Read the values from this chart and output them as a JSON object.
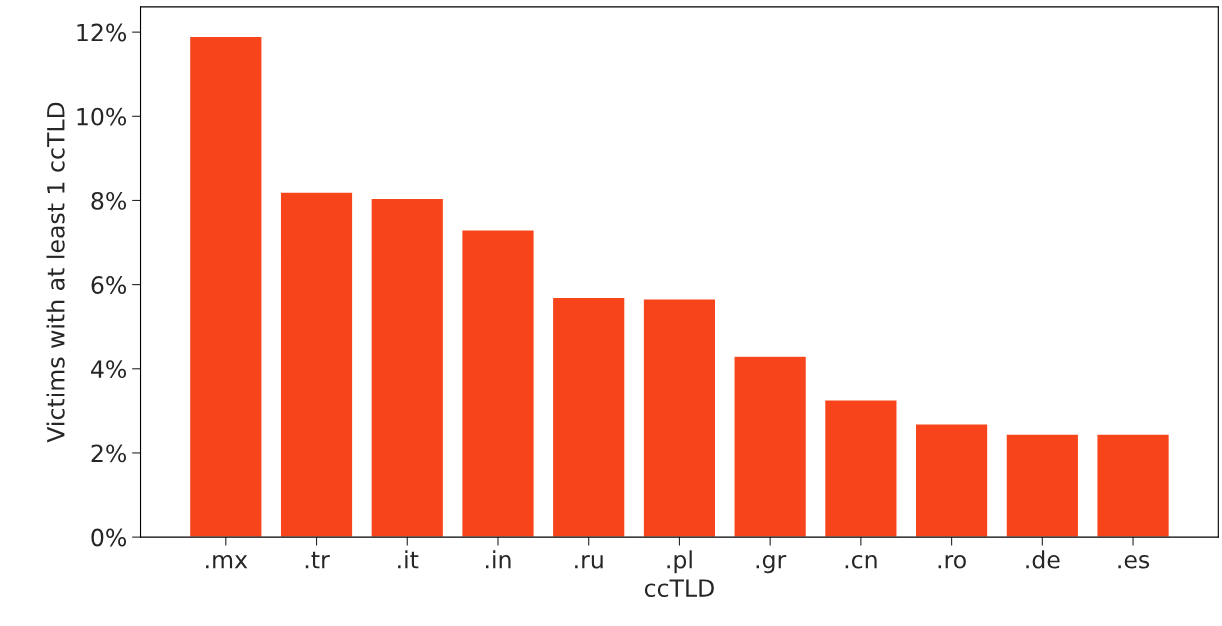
{
  "chart_data": {
    "type": "bar",
    "xlabel": "ccTLD",
    "ylabel": "Victims with at least 1 ccTLD",
    "categories": [
      ".mx",
      ".tr",
      ".it",
      ".in",
      ".ru",
      ".pl",
      ".gr",
      ".cn",
      ".ro",
      ".de",
      ".es"
    ],
    "values": [
      11.9,
      8.2,
      8.05,
      7.3,
      5.7,
      5.66,
      4.3,
      3.26,
      2.69,
      2.45,
      2.45
    ],
    "color": "#f7441a",
    "ylim": [
      0,
      12.6
    ],
    "yticks": [
      {
        "value": 0,
        "label": "0%"
      },
      {
        "value": 2,
        "label": "2%"
      },
      {
        "value": 4,
        "label": "4%"
      },
      {
        "value": 6,
        "label": "6%"
      },
      {
        "value": 8,
        "label": "8%"
      },
      {
        "value": 10,
        "label": "10%"
      },
      {
        "value": 12,
        "label": "12%"
      }
    ],
    "grid": false
  }
}
